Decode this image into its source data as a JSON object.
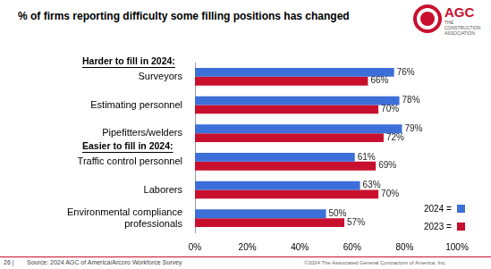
{
  "chart_data": {
    "type": "bar",
    "orientation": "horizontal",
    "title": "% of firms reporting difficulty some filling positions has changed",
    "categories": [
      "Surveyors",
      "Estimating personnel",
      "Pipefitters/welders",
      "Traffic control personnel",
      "Laborers",
      "Environmental compliance professionals"
    ],
    "series": [
      {
        "name": "2024 =",
        "color": "#3d6fd9",
        "values": [
          76,
          78,
          79,
          61,
          63,
          50
        ],
        "value_labels": [
          "76%",
          "78%",
          "79%",
          "61%",
          "63%",
          "50%"
        ]
      },
      {
        "name": "2023 =",
        "color": "#c8102e",
        "values": [
          66,
          70,
          72,
          69,
          70,
          57
        ],
        "value_labels": [
          "66%",
          "70%",
          "72%",
          "69%",
          "70%",
          "57%"
        ]
      }
    ],
    "xlim": [
      0,
      100
    ],
    "xticks": [
      {
        "value": 0,
        "label": "0%"
      },
      {
        "value": 20,
        "label": "20%"
      },
      {
        "value": 40,
        "label": "40%"
      },
      {
        "value": 60,
        "label": "60%"
      },
      {
        "value": 80,
        "label": "80%"
      },
      {
        "value": 100,
        "label": "100%"
      }
    ],
    "grid": false,
    "legend": "right",
    "data_labels": true,
    "annotations": [
      {
        "text": "Harder to fill in 2024:",
        "category": "Surveyors"
      },
      {
        "text": "Easier to fill in 2024:",
        "category": "Traffic control personnel"
      }
    ]
  },
  "logo": {
    "text": "AGC",
    "subtitle": "THE CONSTRUCTION ASSOCIATION"
  },
  "footer": {
    "page": "26 |",
    "source": "Source: 2024 AGC of America/Arcoro Workforce Survey",
    "copyright": "©2024 The Associated General Contractors of America, Inc."
  }
}
